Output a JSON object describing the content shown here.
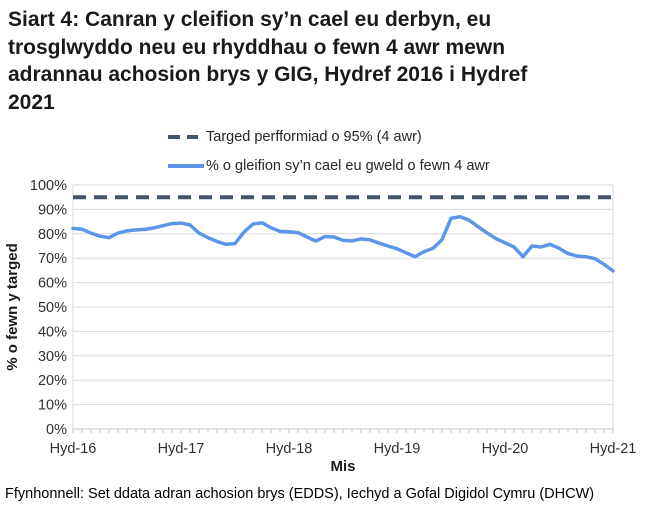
{
  "header": {
    "title": "Siart 4: Canran y cleifion sy’n cael eu derbyn, eu\ntrosglwyddo neu eu rhyddhau o fewn 4 awr mewn\nadrannau achosion brys y GIG, Hydref 2016 i Hydref\n2021"
  },
  "footer": {
    "source": "Ffynhonnell: Set ddata adran achosion brys (EDDS), Iechyd a Gofal Digidol Cymru (DHCW)"
  },
  "chart_data": {
    "type": "line",
    "title": "Siart 4: Canran y cleifion sy’n cael eu derbyn, eu trosglwyddo neu eu rhyddhau o fewn 4 awr mewn adrannau achosion brys y GIG, Hydref 2016 i Hydref 2021",
    "xlabel": "Mis",
    "ylabel": "% o fewn y targed",
    "ylim": [
      0,
      100
    ],
    "y_tick_step": 10,
    "y_tick_suffix": "%",
    "grid": "horizontal",
    "legend_position": "top",
    "frequency": "monthly",
    "x_tick_labels": [
      "Hyd-16",
      "Hyd-17",
      "Hyd-18",
      "Hyd-19",
      "Hyd-20",
      "Hyd-21"
    ],
    "months_per_tick": 12,
    "target_line": {
      "value": 95,
      "style": "dashed",
      "color": "#44546A",
      "label": "Targed perfformiad o 95% (4 awr)"
    },
    "series": [
      {
        "name": "% o gleifion sy’n cael eu gweld o fewn 4 awr",
        "color": "#5B96E8",
        "values": [
          82.2,
          81.9,
          80.3,
          79.0,
          78.4,
          80.3,
          81.2,
          81.6,
          81.8,
          82.4,
          83.3,
          84.2,
          84.4,
          83.6,
          80.3,
          78.4,
          76.9,
          75.7,
          76.0,
          80.7,
          84.0,
          84.5,
          82.5,
          81.0,
          80.8,
          80.5,
          78.7,
          77.0,
          78.9,
          78.7,
          77.3,
          77.1,
          77.9,
          77.5,
          76.2,
          75.0,
          73.9,
          72.2,
          70.6,
          72.7,
          74.0,
          77.6,
          86.3,
          87.0,
          85.6,
          82.9,
          80.4,
          78.0,
          76.3,
          74.6,
          70.6,
          75.0,
          74.6,
          75.7,
          74.1,
          71.9,
          70.9,
          70.6,
          69.8,
          67.5,
          64.8
        ]
      }
    ],
    "colors": {
      "gridline": "#D9D9D9",
      "axis": "#C0C0C0",
      "tick_label": "#303030"
    }
  }
}
